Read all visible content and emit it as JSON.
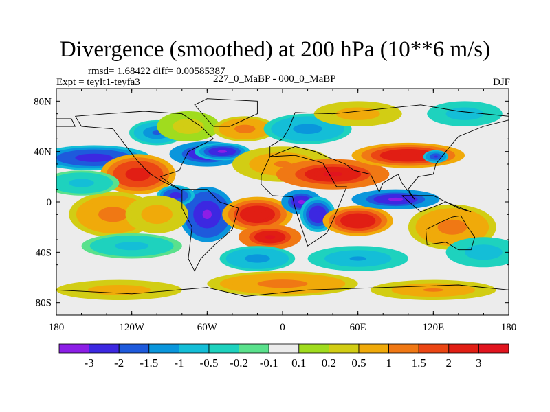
{
  "title": "Divergence (smoothed) at 200 hPa (10**6 m/s)",
  "stats_label": "rmsd= 1.68422 diff= 0.00585387",
  "experiment_label": "Expt = teyIt1-teyfa3",
  "period_label": "227_0_MaBP - 000_0_MaBP",
  "season_label": "DJF",
  "chart_data": {
    "type": "heatmap",
    "title": "Divergence (smoothed) at 200 hPa (10**6 m/s)",
    "xlabel": "",
    "ylabel": "",
    "xlim": [
      -180,
      180
    ],
    "ylim": [
      -90,
      90
    ],
    "x_ticks": [
      {
        "value": -180,
        "label": "180"
      },
      {
        "value": -120,
        "label": "120W"
      },
      {
        "value": -60,
        "label": "60W"
      },
      {
        "value": 0,
        "label": "0"
      },
      {
        "value": 60,
        "label": "60E"
      },
      {
        "value": 120,
        "label": "120E"
      },
      {
        "value": 180,
        "label": "180"
      }
    ],
    "y_ticks": [
      {
        "value": 80,
        "label": "80N"
      },
      {
        "value": 40,
        "label": "40N"
      },
      {
        "value": 0,
        "label": "0"
      },
      {
        "value": -40,
        "label": "40S"
      },
      {
        "value": -80,
        "label": "80S"
      }
    ],
    "colorbar": {
      "boundaries": [
        "-3",
        "-2",
        "-1.5",
        "-1",
        "-0.5",
        "-0.2",
        "-0.1",
        "0.1",
        "0.2",
        "0.5",
        "1",
        "1.5",
        "2",
        "3"
      ],
      "colors": [
        "#8c1ee6",
        "#3c28e1",
        "#1e5adc",
        "#0a96dc",
        "#14bed7",
        "#1ed2be",
        "#5ae18c",
        "#ececec",
        "#a0dc1e",
        "#d2cd14",
        "#f0aa0a",
        "#f07814",
        "#eb4614",
        "#e11e14",
        "#e1141e"
      ]
    },
    "field": [
      {
        "lon": -150,
        "lat": 35,
        "value": -2.5,
        "rx": 45,
        "ry": 10
      },
      {
        "lon": -115,
        "lat": 22,
        "value": 2.5,
        "rx": 30,
        "ry": 16
      },
      {
        "lon": -60,
        "lat": 38,
        "value": -3.2,
        "rx": 30,
        "ry": 10
      },
      {
        "lon": -48,
        "lat": 40,
        "value": -3.0,
        "rx": 22,
        "ry": 7
      },
      {
        "lon": -100,
        "lat": 55,
        "value": -1.5,
        "rx": 22,
        "ry": 10
      },
      {
        "lon": -75,
        "lat": 60,
        "value": 0.3,
        "rx": 25,
        "ry": 12
      },
      {
        "lon": -30,
        "lat": 58,
        "value": 1.2,
        "rx": 25,
        "ry": 10
      },
      {
        "lon": 20,
        "lat": 58,
        "value": -1.2,
        "rx": 35,
        "ry": 12
      },
      {
        "lon": 60,
        "lat": 70,
        "value": 0.8,
        "rx": 35,
        "ry": 10
      },
      {
        "lon": 145,
        "lat": 70,
        "value": -0.8,
        "rx": 30,
        "ry": 10
      },
      {
        "lon": 0,
        "lat": 30,
        "value": 1.0,
        "rx": 40,
        "ry": 14
      },
      {
        "lon": 40,
        "lat": 22,
        "value": 3.0,
        "rx": 45,
        "ry": 12
      },
      {
        "lon": 100,
        "lat": 37,
        "value": 2.8,
        "rx": 45,
        "ry": 10
      },
      {
        "lon": 122,
        "lat": 36,
        "value": -2.2,
        "rx": 10,
        "ry": 5
      },
      {
        "lon": -60,
        "lat": -10,
        "value": -3.3,
        "rx": 22,
        "ry": 22
      },
      {
        "lon": -85,
        "lat": 5,
        "value": -2.5,
        "rx": 15,
        "ry": 8
      },
      {
        "lon": -20,
        "lat": -10,
        "value": 2.8,
        "rx": 28,
        "ry": 14
      },
      {
        "lon": -10,
        "lat": -28,
        "value": 3.0,
        "rx": 25,
        "ry": 10
      },
      {
        "lon": 15,
        "lat": 0,
        "value": -3.2,
        "rx": 16,
        "ry": 10
      },
      {
        "lon": 28,
        "lat": -10,
        "value": -2.8,
        "rx": 14,
        "ry": 14
      },
      {
        "lon": 60,
        "lat": -15,
        "value": 2.8,
        "rx": 28,
        "ry": 12
      },
      {
        "lon": 90,
        "lat": 2,
        "value": -3.2,
        "rx": 35,
        "ry": 8
      },
      {
        "lon": 135,
        "lat": -20,
        "value": 1.2,
        "rx": 35,
        "ry": 18
      },
      {
        "lon": -135,
        "lat": -10,
        "value": 1.2,
        "rx": 35,
        "ry": 18
      },
      {
        "lon": -120,
        "lat": -35,
        "value": -0.6,
        "rx": 40,
        "ry": 10
      },
      {
        "lon": -20,
        "lat": -45,
        "value": -1.2,
        "rx": 30,
        "ry": 10
      },
      {
        "lon": 60,
        "lat": -45,
        "value": -1.0,
        "rx": 40,
        "ry": 10
      },
      {
        "lon": 160,
        "lat": -40,
        "value": -0.8,
        "rx": 30,
        "ry": 12
      },
      {
        "lon": 0,
        "lat": -65,
        "value": 1.2,
        "rx": 60,
        "ry": 10
      },
      {
        "lon": -130,
        "lat": -70,
        "value": 0.8,
        "rx": 50,
        "ry": 8
      },
      {
        "lon": 120,
        "lat": -70,
        "value": 1.0,
        "rx": 50,
        "ry": 8
      },
      {
        "lon": -160,
        "lat": 15,
        "value": -0.6,
        "rx": 30,
        "ry": 10
      },
      {
        "lon": -100,
        "lat": -10,
        "value": 0.8,
        "rx": 25,
        "ry": 15
      }
    ]
  }
}
